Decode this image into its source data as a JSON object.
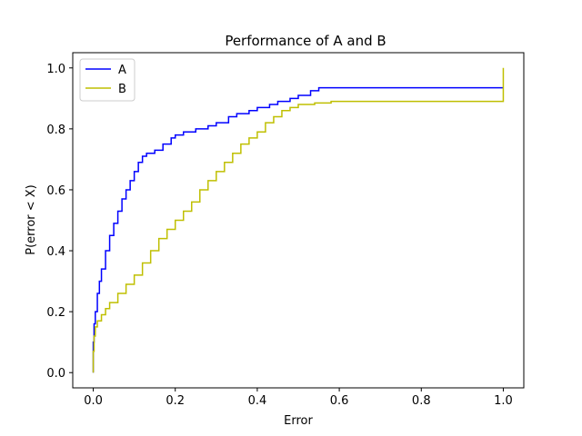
{
  "chart_data": {
    "type": "line",
    "title": "Performance of A and B",
    "xlabel": "Error",
    "ylabel": "P(error < X)",
    "xlim": [
      -0.05,
      1.05
    ],
    "ylim": [
      -0.05,
      1.05
    ],
    "xticks": [
      0.0,
      0.2,
      0.4,
      0.6,
      0.8,
      1.0
    ],
    "yticks": [
      0.0,
      0.2,
      0.4,
      0.6,
      0.8,
      1.0
    ],
    "xtick_labels": [
      "0.0",
      "0.2",
      "0.4",
      "0.6",
      "0.8",
      "1.0"
    ],
    "ytick_labels": [
      "0.0",
      "0.2",
      "0.4",
      "0.6",
      "0.8",
      "1.0"
    ],
    "grid": false,
    "legend_position": "top-left",
    "series": [
      {
        "name": "A",
        "color": "#0000ff",
        "x": [
          0.0,
          0.0,
          0.002,
          0.005,
          0.01,
          0.015,
          0.02,
          0.03,
          0.04,
          0.05,
          0.06,
          0.07,
          0.08,
          0.09,
          0.1,
          0.11,
          0.12,
          0.13,
          0.15,
          0.17,
          0.19,
          0.2,
          0.22,
          0.25,
          0.28,
          0.3,
          0.33,
          0.35,
          0.38,
          0.4,
          0.43,
          0.45,
          0.48,
          0.5,
          0.53,
          0.55,
          0.6,
          0.7,
          0.8,
          0.9,
          1.0,
          1.0
        ],
        "y": [
          0.0,
          0.1,
          0.16,
          0.2,
          0.26,
          0.3,
          0.34,
          0.4,
          0.45,
          0.49,
          0.53,
          0.57,
          0.6,
          0.63,
          0.66,
          0.69,
          0.71,
          0.72,
          0.73,
          0.75,
          0.77,
          0.78,
          0.79,
          0.8,
          0.81,
          0.82,
          0.84,
          0.85,
          0.86,
          0.87,
          0.88,
          0.89,
          0.9,
          0.91,
          0.925,
          0.935,
          0.935,
          0.935,
          0.935,
          0.935,
          0.935,
          0.935
        ]
      },
      {
        "name": "B",
        "color": "#bfbf00",
        "x": [
          0.0,
          0.0,
          0.002,
          0.005,
          0.01,
          0.02,
          0.03,
          0.04,
          0.06,
          0.08,
          0.1,
          0.12,
          0.14,
          0.16,
          0.18,
          0.2,
          0.22,
          0.24,
          0.26,
          0.28,
          0.3,
          0.32,
          0.34,
          0.36,
          0.38,
          0.4,
          0.42,
          0.44,
          0.46,
          0.48,
          0.5,
          0.52,
          0.54,
          0.56,
          0.58,
          0.6,
          0.7,
          0.8,
          0.9,
          1.0,
          1.0
        ],
        "y": [
          0.0,
          0.07,
          0.12,
          0.15,
          0.17,
          0.19,
          0.21,
          0.23,
          0.26,
          0.29,
          0.32,
          0.36,
          0.4,
          0.44,
          0.47,
          0.5,
          0.53,
          0.56,
          0.6,
          0.63,
          0.66,
          0.69,
          0.72,
          0.75,
          0.77,
          0.79,
          0.82,
          0.84,
          0.86,
          0.87,
          0.88,
          0.88,
          0.885,
          0.885,
          0.89,
          0.89,
          0.89,
          0.89,
          0.89,
          0.89,
          1.0
        ]
      }
    ]
  }
}
